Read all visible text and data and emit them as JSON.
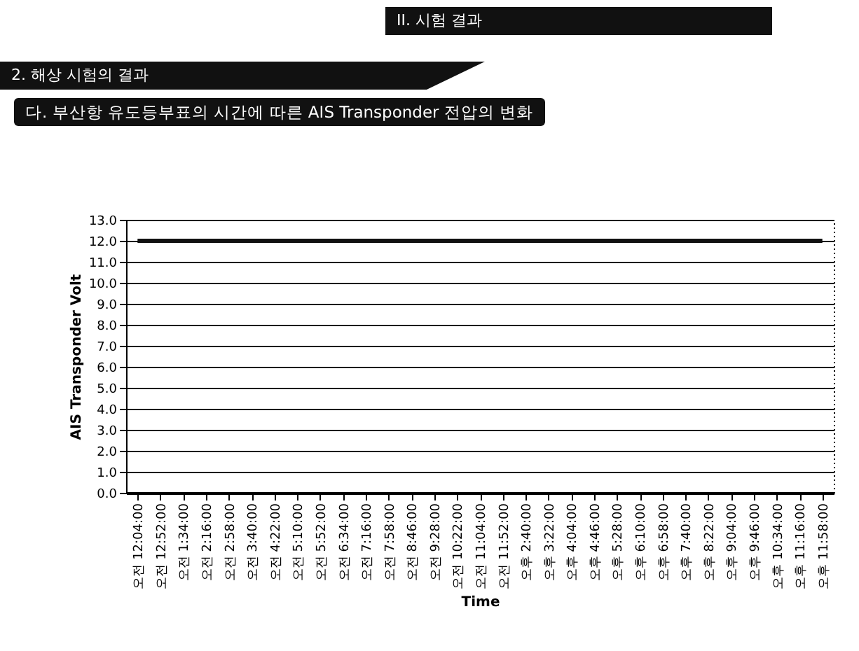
{
  "chart_data": {
    "type": "line",
    "title": "다. 부산항 유도등부표의 시간에 따른 AIS Transponder 전압의 변화",
    "annotations": [
      "II. 시험 결과",
      "2. 해상 시험의 결과"
    ],
    "xlabel": "Time",
    "ylabel": "AIS Transponder Volt",
    "categories": [
      "오전 12:04:00",
      "오전 12:52:00",
      "오전 1:34:00",
      "오전 2:16:00",
      "오전 2:58:00",
      "오전 3:40:00",
      "오전 4:22:00",
      "오전 5:10:00",
      "오전 5:52:00",
      "오전 6:34:00",
      "오전 7:16:00",
      "오전 7:58:00",
      "오전 8:46:00",
      "오전 9:28:00",
      "오전 10:22:00",
      "오전 11:04:00",
      "오전 11:52:00",
      "오후 2:40:00",
      "오후 3:22:00",
      "오후 4:04:00",
      "오후 4:46:00",
      "오후 5:28:00",
      "오후 6:10:00",
      "오후 6:58:00",
      "오후 7:40:00",
      "오후 8:22:00",
      "오후 9:04:00",
      "오후 9:46:00",
      "오후 10:34:00",
      "오후 11:16:00",
      "오후 11:58:00"
    ],
    "series": [
      {
        "color": "#111111",
        "values": [
          12.0,
          12.0,
          12.0,
          12.0,
          12.0,
          12.0,
          12.0,
          12.0,
          12.0,
          12.0,
          12.0,
          12.0,
          12.0,
          12.0,
          12.0,
          12.0,
          12.0,
          12.0,
          12.0,
          12.0,
          12.0,
          12.0,
          12.0,
          12.0,
          12.0,
          12.0,
          12.0,
          12.0,
          12.0,
          12.0,
          12.0
        ]
      }
    ],
    "ylim": [
      0,
      13
    ],
    "yticks": [
      {
        "value": 0,
        "label": "0.0"
      },
      {
        "value": 1,
        "label": "1.0"
      },
      {
        "value": 2,
        "label": "2.0"
      },
      {
        "value": 3,
        "label": "3.0"
      },
      {
        "value": 4,
        "label": "4.0"
      },
      {
        "value": 5,
        "label": "5.0"
      },
      {
        "value": 6,
        "label": "6.0"
      },
      {
        "value": 7,
        "label": "7.0"
      },
      {
        "value": 8,
        "label": "8.0"
      },
      {
        "value": 9,
        "label": "9.0"
      },
      {
        "value": 10,
        "label": "10.0"
      },
      {
        "value": 11,
        "label": "11.0"
      },
      {
        "value": 12,
        "label": "12.0"
      },
      {
        "value": 13,
        "label": "13.0"
      }
    ],
    "grid": "y",
    "marker": "none",
    "line_style": "solid"
  }
}
